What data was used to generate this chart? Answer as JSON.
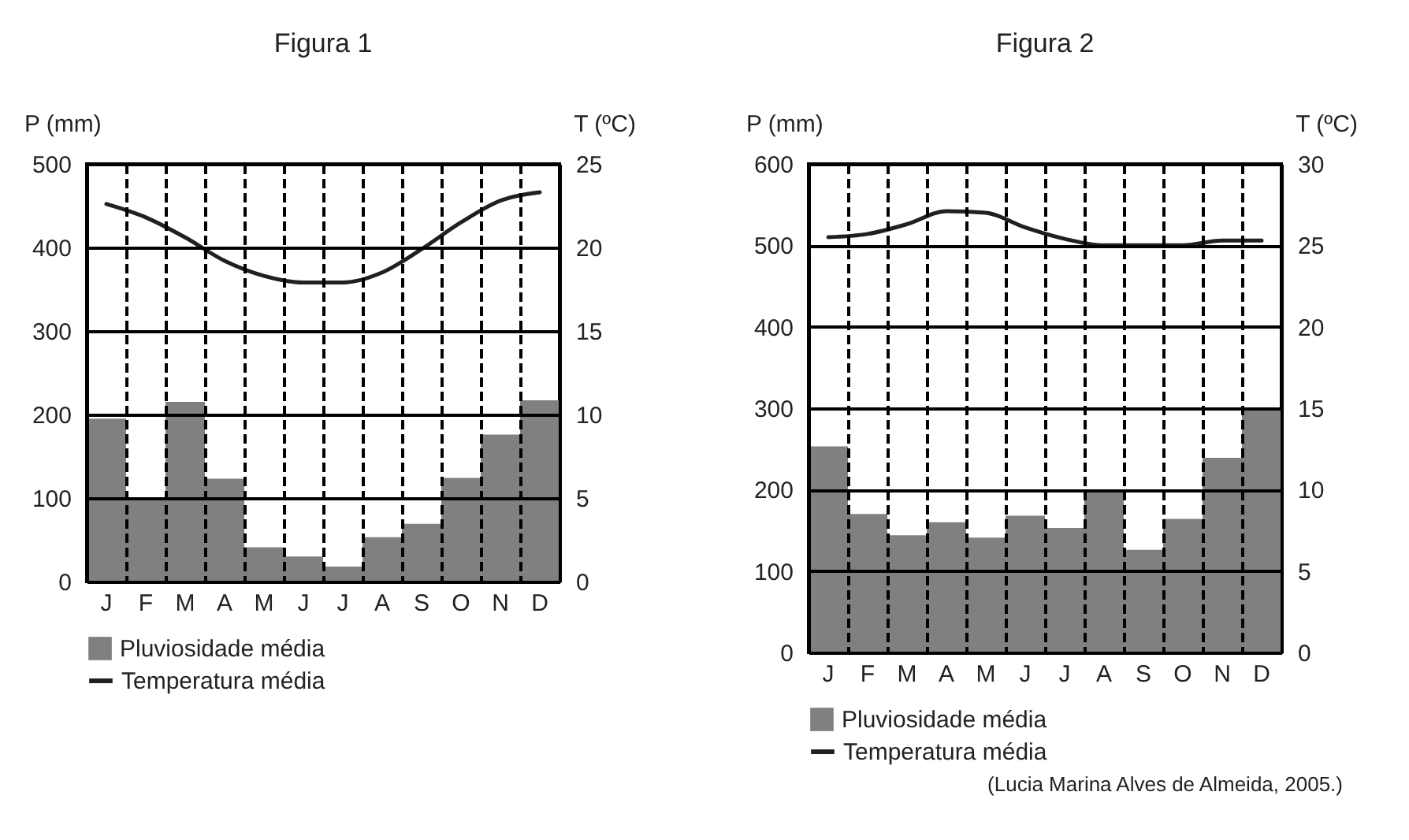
{
  "chart_data": [
    {
      "type": "bar",
      "title": "Figura 1",
      "categories": [
        "J",
        "F",
        "M",
        "A",
        "M",
        "J",
        "J",
        "A",
        "S",
        "O",
        "N",
        "D"
      ],
      "ylabel": "P (mm)",
      "y2label": "T (ºC)",
      "ylim": [
        0,
        500
      ],
      "yticks": [
        0,
        100,
        200,
        300,
        400,
        500
      ],
      "y2lim": [
        0,
        25
      ],
      "y2ticks": [
        0,
        5,
        10,
        15,
        20,
        25
      ],
      "grid": true,
      "legend": "bottom",
      "series": [
        {
          "name": "Pluviosidade média",
          "color": "#808080",
          "values": [
            195,
            100,
            215,
            123,
            41,
            30,
            18,
            53,
            69,
            124,
            176,
            217
          ]
        },
        {
          "name": "Temperatura média",
          "type": "line",
          "axis": "y2",
          "color": "#231f20",
          "values": [
            22.6,
            21.8,
            20.6,
            19.2,
            18.3,
            17.9,
            17.9,
            18.5,
            19.9,
            21.5,
            22.8,
            23.3
          ]
        }
      ]
    },
    {
      "type": "bar",
      "title": "Figura 2",
      "categories": [
        "J",
        "F",
        "M",
        "A",
        "M",
        "J",
        "J",
        "A",
        "S",
        "O",
        "N",
        "D"
      ],
      "ylabel": "P (mm)",
      "y2label": "T (ºC)",
      "ylim": [
        0,
        600
      ],
      "yticks": [
        0,
        100,
        200,
        300,
        400,
        500,
        600
      ],
      "y2lim": [
        0,
        30
      ],
      "y2ticks": [
        0,
        5,
        10,
        15,
        20,
        25,
        30
      ],
      "grid": true,
      "legend": "bottom",
      "annotations": [
        "(Lucia Marina Alves de Almeida, 2005.)"
      ],
      "series": [
        {
          "name": "Pluviosidade média",
          "color": "#808080",
          "values": [
            253,
            170,
            144,
            160,
            141,
            168,
            153,
            200,
            126,
            164,
            239,
            300
          ]
        },
        {
          "name": "Temperatura média",
          "type": "line",
          "axis": "y2",
          "color": "#231f20",
          "values": [
            25.5,
            25.7,
            26.3,
            27.1,
            27.0,
            26.1,
            25.4,
            25,
            25,
            25,
            25.3,
            25.3
          ]
        }
      ]
    }
  ]
}
